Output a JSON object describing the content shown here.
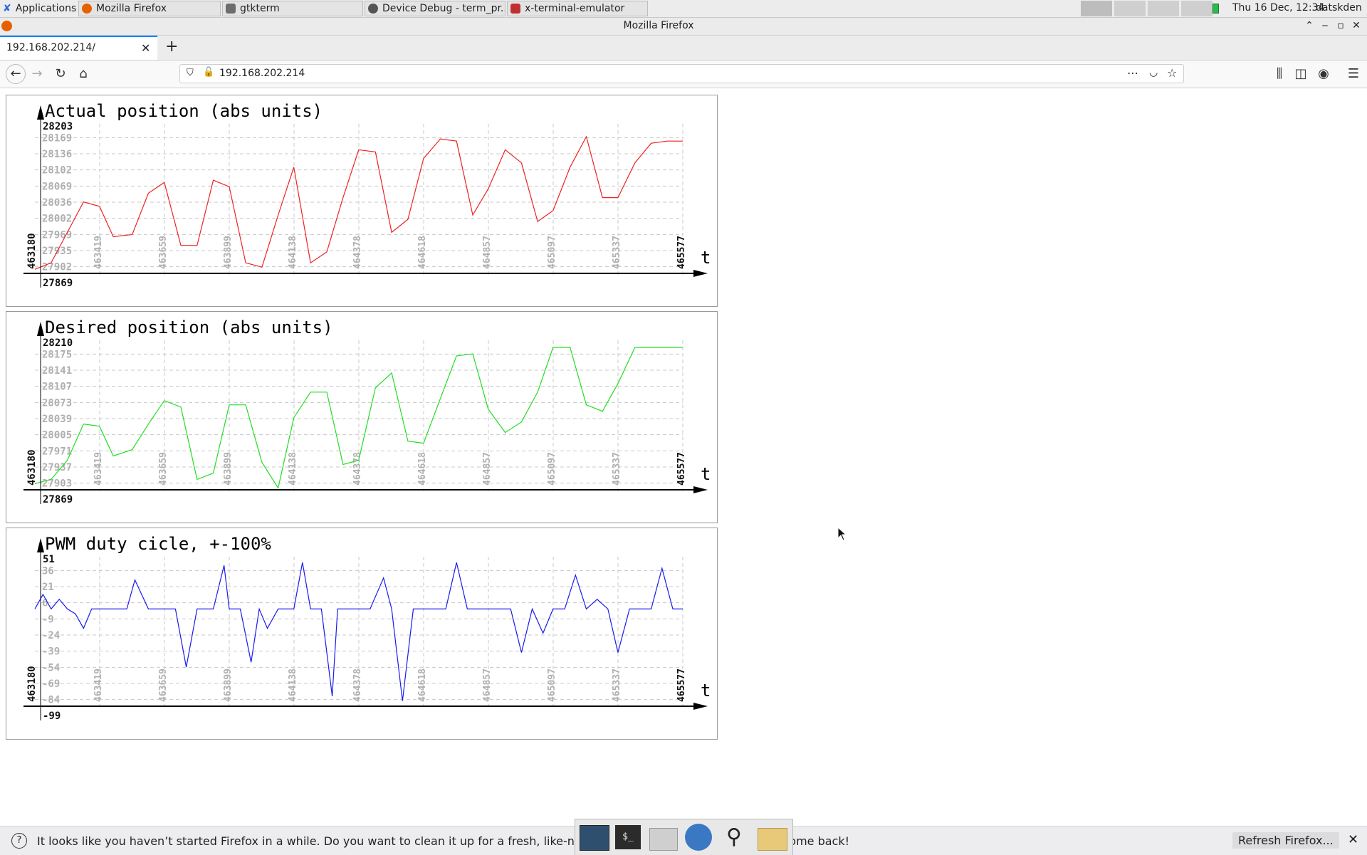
{
  "panel": {
    "apps_menu": "Applications",
    "tasks": [
      {
        "label": "Mozilla Firefox",
        "color": "#e66000"
      },
      {
        "label": "gtkterm",
        "color": "#6d6d6d"
      },
      {
        "label": "Device Debug - term_pr...",
        "color": "#555555"
      },
      {
        "label": "x-terminal-emulator",
        "color": "#c03030"
      }
    ],
    "clock": "Thu 16 Dec, 12:34",
    "user": "datskden"
  },
  "window": {
    "title": "Mozilla Firefox"
  },
  "browser": {
    "tab_title": "192.168.202.214/",
    "url": "192.168.202.214"
  },
  "charts": [
    {
      "title": "Actual position (abs units)",
      "color": "#ee2222",
      "time_label": "463180",
      "t_label": "t",
      "y_min_label": "27869",
      "y_max_label": "28203",
      "x_ticks": [
        "463419",
        "463659",
        "463899",
        "464138",
        "464378",
        "464618",
        "464857",
        "465097",
        "465337",
        "465577"
      ],
      "y_ticks": [
        "28169",
        "28136",
        "28102",
        "28069",
        "28036",
        "28002",
        "27969",
        "27935",
        "27902"
      ]
    },
    {
      "title": "Desired position (abs units)",
      "color": "#22dd22",
      "time_label": "463180",
      "t_label": "t",
      "y_min_label": "27869",
      "y_max_label": "28210",
      "x_ticks": [
        "463419",
        "463659",
        "463899",
        "464138",
        "464378",
        "464618",
        "464857",
        "465097",
        "465337",
        "465577"
      ],
      "y_ticks": [
        "28175",
        "28141",
        "28107",
        "28073",
        "28039",
        "28005",
        "27971",
        "27937",
        "27903"
      ]
    },
    {
      "title": "PWM duty cicle, +-100%",
      "color": "#1a1aee",
      "time_label": "463180",
      "t_label": "t",
      "y_min_label": "-99",
      "y_max_label": "51",
      "x_ticks": [
        "463419",
        "463659",
        "463899",
        "464138",
        "464378",
        "464618",
        "464857",
        "465097",
        "465337",
        "465577"
      ],
      "y_ticks": [
        "36",
        "21",
        "6",
        "-9",
        "-24",
        "-39",
        "-54",
        "-69",
        "-84"
      ]
    }
  ],
  "chart_data": [
    {
      "type": "line",
      "title": "Actual position (abs units)",
      "xlabel": "t",
      "ylim": [
        27869,
        28203
      ],
      "x": [
        463180,
        463240,
        463300,
        463360,
        463419,
        463470,
        463540,
        463600,
        463659,
        463720,
        463780,
        463840,
        463899,
        463960,
        464020,
        464080,
        464138,
        464200,
        464260,
        464320,
        464378,
        464440,
        464500,
        464560,
        464618,
        464680,
        464740,
        464800,
        464857,
        464920,
        464980,
        465040,
        465097,
        465160,
        465220,
        465280,
        465337,
        465400,
        465460,
        465520,
        465577
      ],
      "series": [
        {
          "values": [
            27875,
            27890,
            27960,
            28030,
            28020,
            27950,
            27955,
            28050,
            28075,
            27930,
            27930,
            28080,
            28065,
            27890,
            27880,
            28000,
            28110,
            27890,
            27915,
            28040,
            28150,
            28145,
            27960,
            27990,
            28130,
            28175,
            28170,
            28000,
            28060,
            28150,
            28120,
            27985,
            28010,
            28110,
            28180,
            28040,
            28040,
            28120,
            28165,
            28170,
            28170
          ]
        }
      ]
    },
    {
      "type": "line",
      "title": "Desired position (abs units)",
      "xlabel": "t",
      "ylim": [
        27869,
        28210
      ],
      "x": [
        463180,
        463240,
        463300,
        463360,
        463419,
        463470,
        463540,
        463600,
        463659,
        463720,
        463780,
        463840,
        463899,
        463960,
        464020,
        464080,
        464138,
        464200,
        464260,
        464320,
        464378,
        464440,
        464500,
        464560,
        464618,
        464680,
        464740,
        464800,
        464857,
        464920,
        464980,
        465040,
        465097,
        465160,
        465220,
        465280,
        465337,
        465400,
        465460,
        465520,
        465577
      ],
      "series": [
        {
          "values": [
            27880,
            27890,
            27935,
            28020,
            28015,
            27945,
            27960,
            28020,
            28075,
            28060,
            27890,
            27905,
            28065,
            28065,
            27930,
            27870,
            28035,
            28095,
            28095,
            27925,
            27935,
            28105,
            28140,
            27980,
            27975,
            28080,
            28180,
            28185,
            28055,
            28000,
            28025,
            28095,
            28200,
            28200,
            28065,
            28050,
            28115,
            28200,
            28200,
            28200,
            28200
          ]
        }
      ]
    },
    {
      "type": "line",
      "title": "PWM duty cicle, +-100%",
      "xlabel": "t",
      "ylim": [
        -99,
        51
      ],
      "x": [
        463180,
        463210,
        463240,
        463270,
        463300,
        463330,
        463360,
        463390,
        463419,
        463470,
        463520,
        463550,
        463600,
        463659,
        463700,
        463740,
        463780,
        463800,
        463840,
        463880,
        463899,
        463940,
        463980,
        464010,
        464040,
        464080,
        464100,
        464138,
        464170,
        464200,
        464240,
        464280,
        464300,
        464340,
        464378,
        464420,
        464470,
        464500,
        464540,
        464580,
        464618,
        464660,
        464700,
        464740,
        464780,
        464820,
        464857,
        464900,
        464940,
        464980,
        465020,
        465060,
        465097,
        465140,
        465180,
        465220,
        465260,
        465300,
        465337,
        465380,
        465420,
        465460,
        465500,
        465540,
        465577
      ],
      "series": [
        {
          "values": [
            0,
            15,
            0,
            10,
            0,
            -5,
            -20,
            0,
            0,
            0,
            0,
            30,
            0,
            0,
            0,
            -60,
            0,
            0,
            0,
            45,
            0,
            0,
            -55,
            0,
            -20,
            0,
            0,
            0,
            48,
            0,
            0,
            -90,
            0,
            0,
            0,
            0,
            32,
            0,
            -95,
            0,
            0,
            0,
            0,
            48,
            0,
            0,
            0,
            0,
            0,
            -45,
            0,
            -25,
            0,
            0,
            35,
            0,
            10,
            0,
            -45,
            0,
            0,
            0,
            42,
            0,
            0
          ]
        }
      ]
    }
  ],
  "notification": {
    "text": "It looks like you haven’t started Firefox in a while. Do you want to clean it up for a fresh, like-new experience? And by the way, welcome back!",
    "button": "Refresh Firefox..."
  }
}
